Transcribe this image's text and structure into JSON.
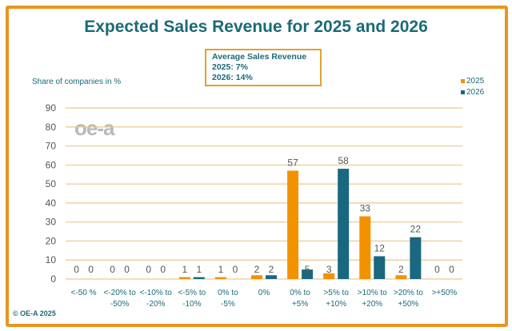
{
  "chart_data": {
    "type": "bar",
    "title": "Expected Sales Revenue for 2025 and 2026",
    "ylabel": "Share of companies in %",
    "xlabel": "",
    "ylim": [
      0,
      90
    ],
    "yticks": [
      0,
      10,
      20,
      30,
      40,
      50,
      60,
      70,
      80,
      90
    ],
    "grid": true,
    "legend_placement": "top-right",
    "categories": [
      [
        "<-50 %"
      ],
      [
        "<-20% to",
        "-50%"
      ],
      [
        "<-10% to",
        "-20%"
      ],
      [
        "<-5% to",
        "-10%"
      ],
      [
        "0% to",
        "-5%"
      ],
      [
        "0%"
      ],
      [
        "0% to",
        "+5%"
      ],
      [
        ">5% to",
        "+10%"
      ],
      [
        ">10% to",
        "+20%"
      ],
      [
        ">20% to",
        "+50%"
      ],
      [
        ">+50%"
      ]
    ],
    "series": [
      {
        "name": "2025",
        "color": "#F39200",
        "values": [
          0,
          0,
          0,
          1,
          1,
          2,
          57,
          3,
          33,
          2,
          0
        ]
      },
      {
        "name": "2026",
        "color": "#1A6780",
        "values": [
          0,
          0,
          0,
          1,
          0,
          2,
          5,
          58,
          12,
          22,
          0
        ]
      }
    ],
    "annotation": {
      "heading": "Average Sales Revenue",
      "line1": "2025: 7%",
      "line2": "2026: 14%"
    }
  },
  "logo_text": "oe-a",
  "copyright": "© OE-A 2025",
  "colors": {
    "frame": "#E8961E",
    "grid": "#E9C98F",
    "title": "#1B6A78"
  }
}
